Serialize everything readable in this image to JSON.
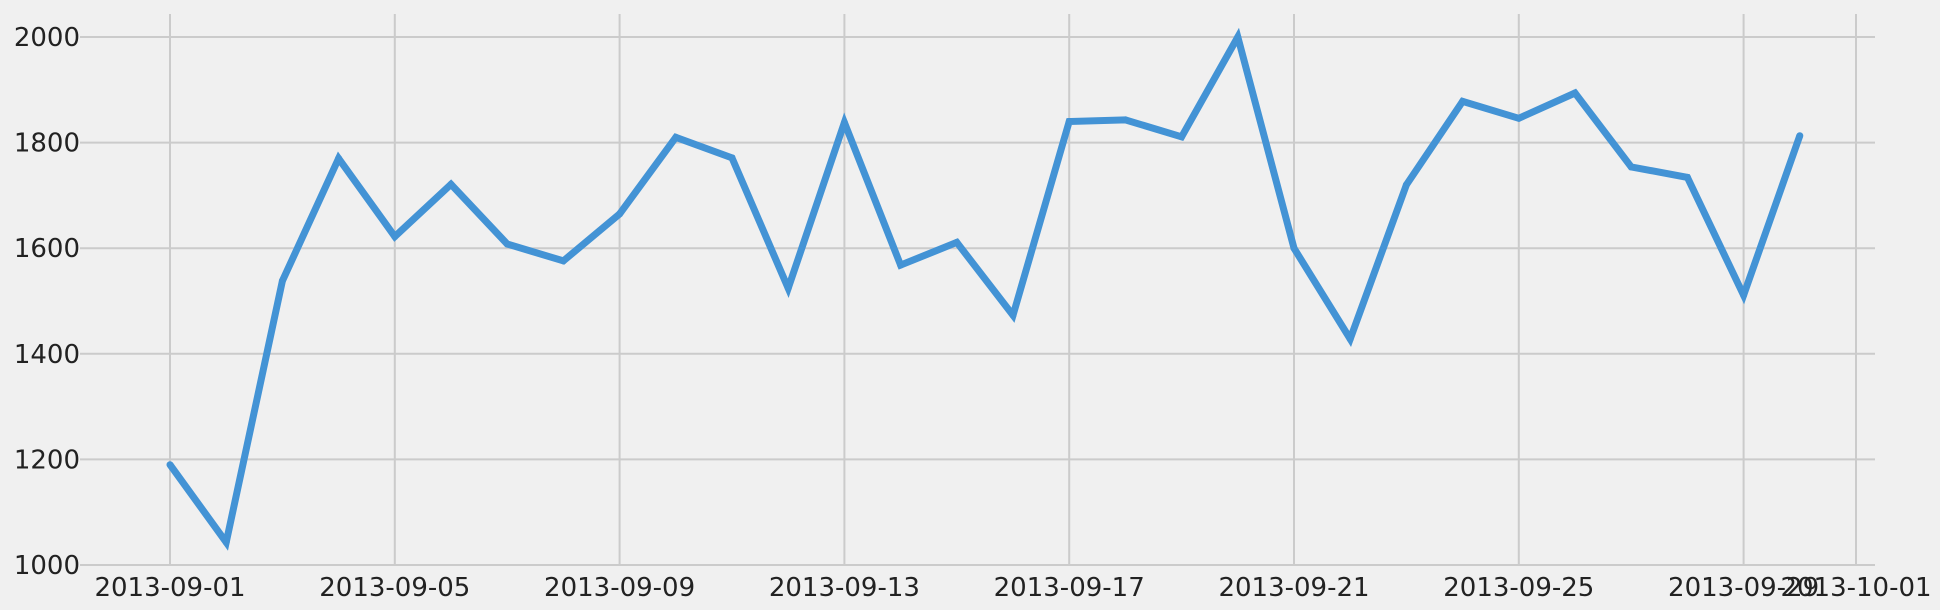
{
  "chart_data": {
    "type": "line",
    "title": "",
    "xlabel": "",
    "ylabel": "",
    "grid": true,
    "legend": "none",
    "xlim": [
      "2013-09-01",
      "2013-10-01"
    ],
    "ylim": [
      1000,
      2000
    ],
    "x_ticks": [
      "2013-09-01",
      "2013-09-05",
      "2013-09-09",
      "2013-09-13",
      "2013-09-17",
      "2013-09-21",
      "2013-09-25",
      "2013-09-29",
      "2013-10-01"
    ],
    "y_ticks": [
      1000,
      1200,
      1400,
      1600,
      1800,
      2000
    ],
    "colors": {
      "background": "#f0f0f0",
      "grid": "#cbcbcb",
      "line": "#4393d5"
    },
    "series": [
      {
        "x": [
          "2013-09-01",
          "2013-09-02",
          "2013-09-03",
          "2013-09-04",
          "2013-09-05",
          "2013-09-06",
          "2013-09-07",
          "2013-09-08",
          "2013-09-09",
          "2013-09-10",
          "2013-09-11",
          "2013-09-12",
          "2013-09-13",
          "2013-09-14",
          "2013-09-15",
          "2013-09-16",
          "2013-09-17",
          "2013-09-18",
          "2013-09-19",
          "2013-09-20",
          "2013-09-21",
          "2013-09-22",
          "2013-09-23",
          "2013-09-24",
          "2013-09-25",
          "2013-09-26",
          "2013-09-27",
          "2013-09-28",
          "2013-09-29",
          "2013-09-30"
        ],
        "values": [
          1190,
          1043,
          1538,
          1770,
          1622,
          1721,
          1608,
          1576,
          1665,
          1810,
          1771,
          1524,
          1838,
          1568,
          1611,
          1473,
          1840,
          1843,
          1811,
          2000,
          1600,
          1428,
          1720,
          1878,
          1846,
          1894,
          1754,
          1734,
          1511,
          1813
        ]
      }
    ]
  }
}
